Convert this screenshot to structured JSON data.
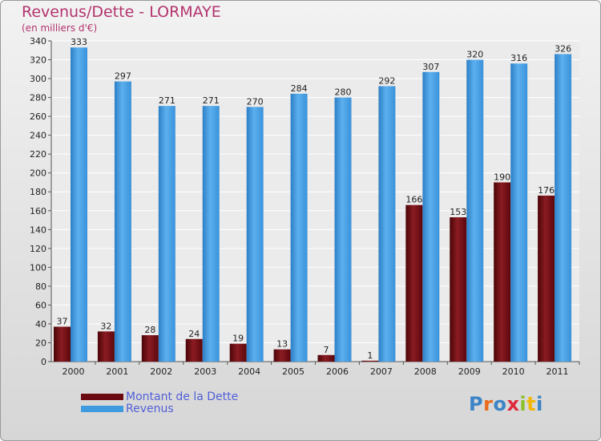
{
  "header": {
    "title": "Revenus/Dette - LORMAYE",
    "unit": "(en milliers d'€)"
  },
  "colors": {
    "dette": "#6b0a10",
    "revenus": "#3f9be0",
    "title": "#b4336e",
    "legend_text": "#4f5fd8"
  },
  "legend": {
    "items": [
      {
        "label": "Montant de la Dette",
        "color": "#6b0a10"
      },
      {
        "label": "Revenus",
        "color": "#3f9be0"
      }
    ]
  },
  "logo": {
    "text": "Proxiti",
    "letters": [
      {
        "ch": "P",
        "color": "#3c84c6"
      },
      {
        "ch": "r",
        "color": "#e86c1c"
      },
      {
        "ch": "o",
        "color": "#3c84c6"
      },
      {
        "ch": "x",
        "color": "#e0283d"
      },
      {
        "ch": "i",
        "color": "#8cbf2a"
      },
      {
        "ch": "t",
        "color": "#f2b705"
      },
      {
        "ch": "i",
        "color": "#3c84c6"
      }
    ]
  },
  "chart_data": {
    "type": "bar",
    "title": "Revenus/Dette - LORMAYE",
    "ylabel": "(en milliers d'€)",
    "ylim": [
      0,
      340
    ],
    "yticks": [
      0,
      20,
      40,
      60,
      80,
      100,
      120,
      140,
      160,
      180,
      200,
      220,
      240,
      260,
      280,
      300,
      320,
      340
    ],
    "grid": true,
    "legend_position": "bottom-left",
    "categories": [
      "2000",
      "2001",
      "2002",
      "2003",
      "2004",
      "2005",
      "2006",
      "2007",
      "2008",
      "2009",
      "2010",
      "2011"
    ],
    "series": [
      {
        "name": "Montant de la Dette",
        "values": [
          37,
          32,
          28,
          24,
          19,
          13,
          7,
          1,
          166,
          153,
          190,
          176
        ]
      },
      {
        "name": "Revenus",
        "values": [
          333,
          297,
          271,
          271,
          270,
          284,
          280,
          292,
          307,
          320,
          316,
          326
        ]
      }
    ]
  }
}
